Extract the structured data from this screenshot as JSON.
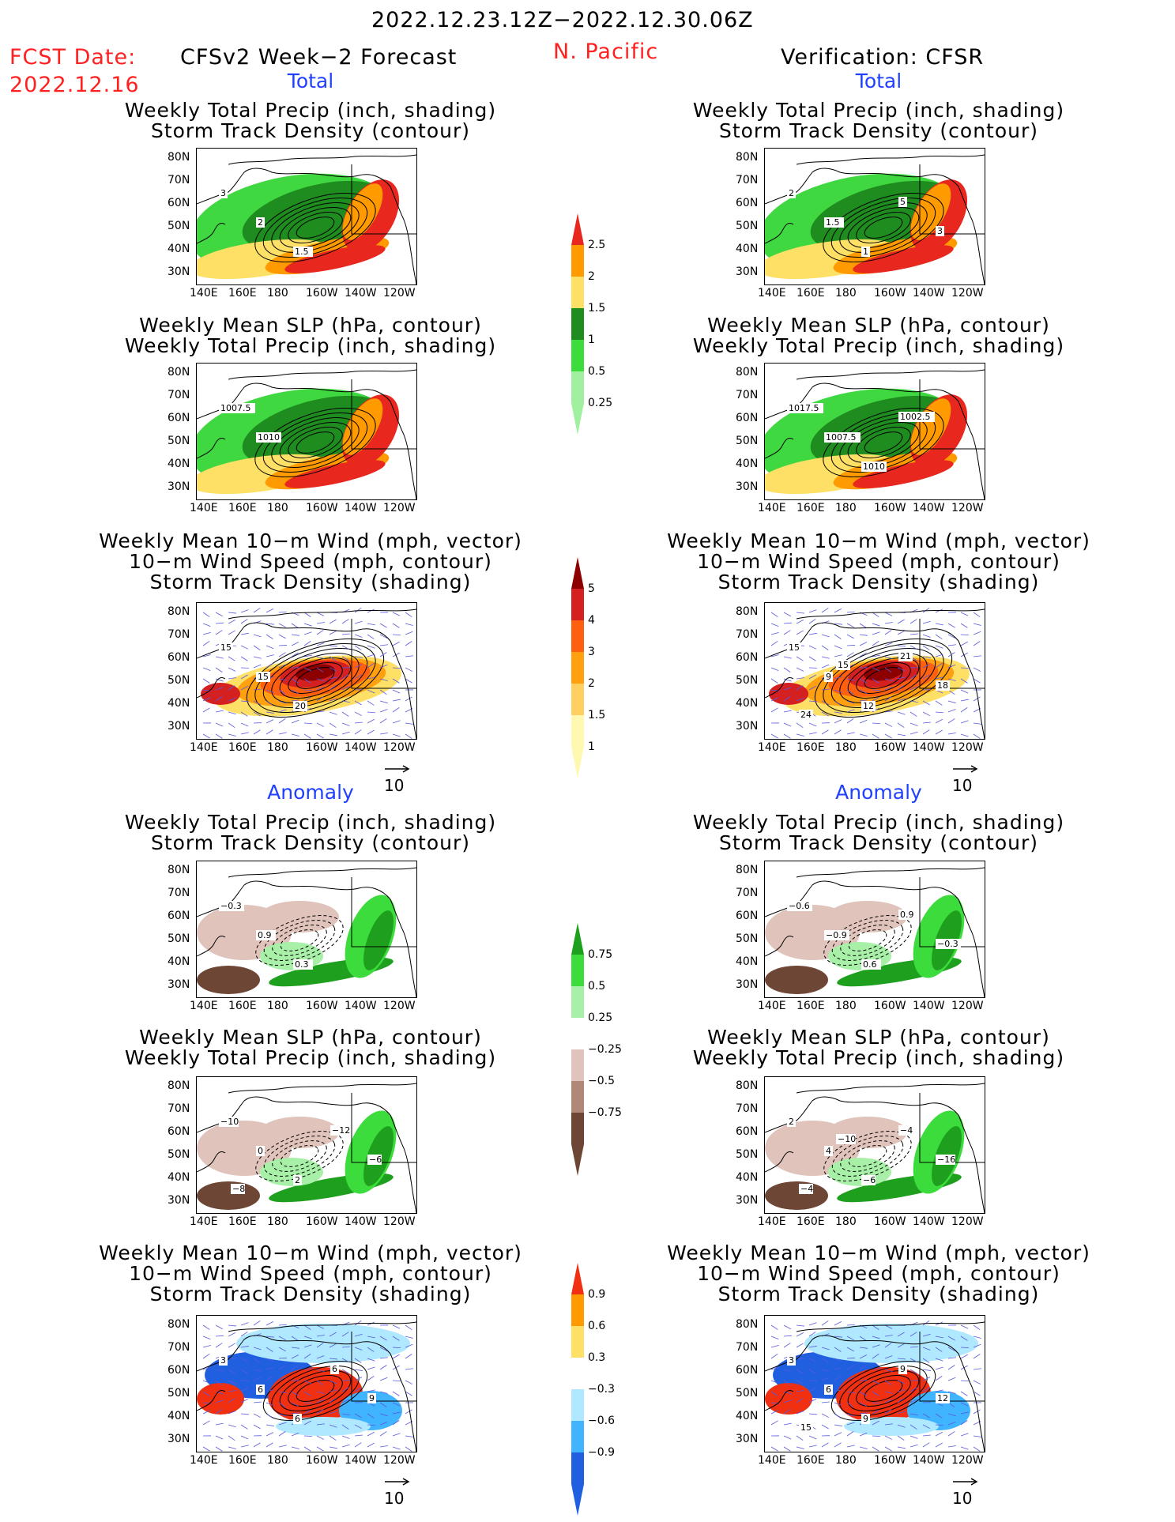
{
  "header": {
    "period": "2022.12.23.12Z−2022.12.30.06Z",
    "fcst_label": "FCST Date:",
    "fcst_date": "2022.12.16",
    "model": "CFSv2 Week−2 Forecast",
    "region": "N. Pacific",
    "verification": "Verification: CFSR"
  },
  "sections": {
    "total": "Total",
    "anomaly": "Anomaly"
  },
  "panel_titles": {
    "precip_storm": [
      "Weekly Total Precip (inch, shading)",
      "Storm Track Density (contour)"
    ],
    "slp_precip": [
      "Weekly Mean SLP (hPa, contour)",
      "Weekly Total Precip (inch, shading)"
    ],
    "wind": [
      "Weekly Mean 10−m Wind (mph, vector)",
      "10−m Wind Speed (mph, contour)",
      "Storm Track Density (shading)"
    ]
  },
  "axes": {
    "lat_labels": [
      "80N",
      "70N",
      "60N",
      "50N",
      "40N",
      "30N"
    ],
    "lon_labels": [
      "140E",
      "160E",
      "180",
      "160W",
      "140W",
      "120W"
    ],
    "vector_ref": "10"
  },
  "colorbars": {
    "precip_total": {
      "labels": [
        "2.5",
        "2",
        "1.5",
        "1",
        "0.5",
        "0.25"
      ],
      "colors": [
        "#e8281e",
        "#ff9a00",
        "#ffe066",
        "#1e8c1e",
        "#3cdc3c",
        "#a0f0a0"
      ]
    },
    "storm_total": {
      "labels": [
        "5",
        "4",
        "3",
        "2",
        "1.5",
        "1"
      ],
      "colors": [
        "#8c0000",
        "#d42020",
        "#ff6010",
        "#ffa010",
        "#ffd060",
        "#fff8b0"
      ]
    },
    "precip_anom": {
      "labels": [
        "0.75",
        "0.5",
        "0.25",
        "−0.25",
        "−0.5",
        "−0.75"
      ],
      "colors": [
        "#1ea01e",
        "#3cdc3c",
        "#a8f0a8",
        "#ffffff",
        "#e0c4bc",
        "#b08878",
        "#6e4636"
      ]
    },
    "storm_anom": {
      "labels": [
        "0.9",
        "0.6",
        "0.3",
        "−0.3",
        "−0.6",
        "−0.9"
      ],
      "colors": [
        "#f03010",
        "#ff9a00",
        "#ffe066",
        "#ffffff",
        "#b0e8ff",
        "#40b4ff",
        "#2060e0"
      ]
    }
  },
  "contour_labels": {
    "r1_left": [
      "3",
      "2",
      "1.5"
    ],
    "r1_right": [
      "2",
      "1.5",
      "1",
      "5",
      "3"
    ],
    "r2_left": [
      "1007.5",
      "1010"
    ],
    "r2_right": [
      "1017.5",
      "1007.5",
      "1010",
      "1002.5"
    ],
    "r3_left": [
      "15",
      "15",
      "20"
    ],
    "r3_right": [
      "15",
      "9",
      "12",
      "21",
      "18",
      "24",
      "15"
    ],
    "r4_left": [
      "−0.3",
      "0.9",
      "0.3"
    ],
    "r4_right": [
      "−0.6",
      "−0.9",
      "0.6",
      "0.9",
      "−0.3"
    ],
    "r5_left": [
      "−10",
      "0",
      "2",
      "−12",
      "−6",
      "−8"
    ],
    "r5_right": [
      "2",
      "4",
      "−6",
      "−4",
      "−16",
      "−4",
      "−10"
    ],
    "r6_left": [
      "3",
      "6",
      "6",
      "6",
      "9"
    ],
    "r6_right": [
      "3",
      "6",
      "9",
      "9",
      "12",
      "15"
    ]
  }
}
